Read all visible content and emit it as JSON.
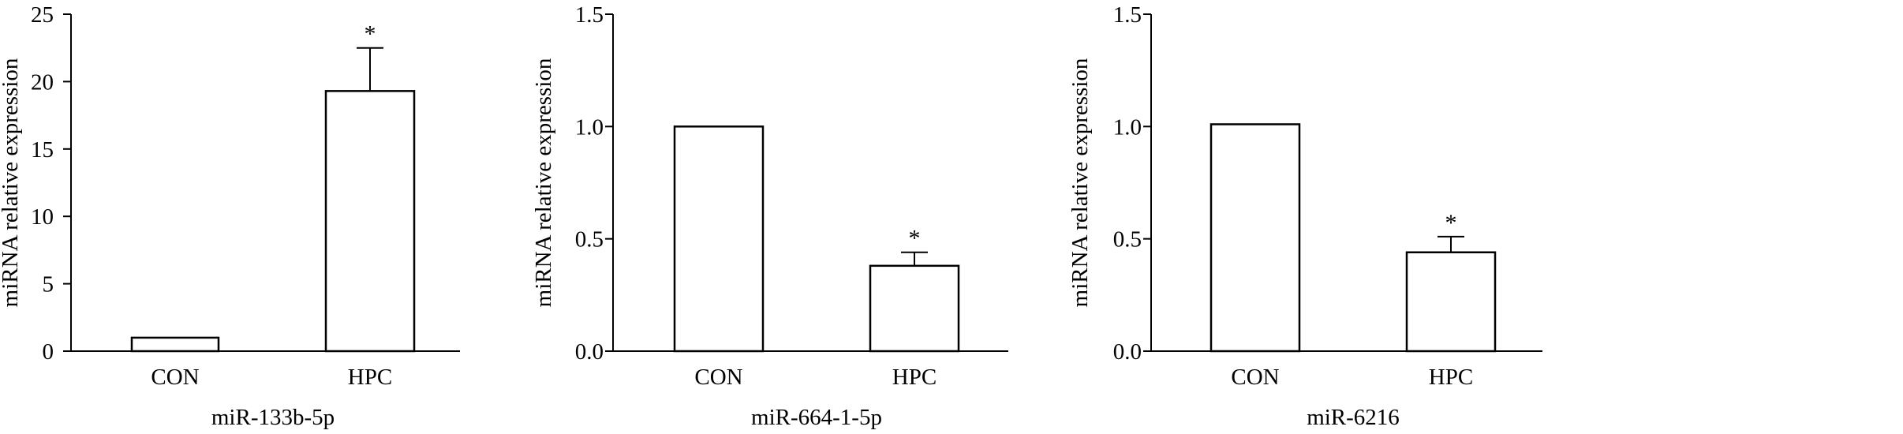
{
  "chart_data": [
    {
      "type": "bar",
      "title": "",
      "xlabel": "miR-133b-5p",
      "ylabel": "miRNA relative expression",
      "categories": [
        "CON",
        "HPC"
      ],
      "values": [
        1.0,
        19.3
      ],
      "errors": [
        0,
        3.2
      ],
      "significance": [
        "",
        "*"
      ],
      "ylim": [
        0,
        25
      ],
      "yticks": [
        0,
        5,
        10,
        15,
        20,
        25
      ],
      "ytick_labels": [
        "0",
        "5",
        "10",
        "15",
        "20",
        "25"
      ]
    },
    {
      "type": "bar",
      "title": "",
      "xlabel": "miR-664-1-5p",
      "ylabel": "miRNA relative expression",
      "categories": [
        "CON",
        "HPC"
      ],
      "values": [
        1.0,
        0.38
      ],
      "errors": [
        0,
        0.06
      ],
      "significance": [
        "",
        "*"
      ],
      "ylim": [
        0,
        1.5
      ],
      "yticks": [
        0,
        0.5,
        1.0,
        1.5
      ],
      "ytick_labels": [
        "0.0",
        "0.5",
        "1.0",
        "1.5"
      ]
    },
    {
      "type": "bar",
      "title": "",
      "xlabel": "miR-6216",
      "ylabel": "miRNA relative expression",
      "categories": [
        "CON",
        "HPC"
      ],
      "values": [
        1.01,
        0.44
      ],
      "errors": [
        0,
        0.07
      ],
      "significance": [
        "",
        "*"
      ],
      "ylim": [
        0,
        1.5
      ],
      "yticks": [
        0,
        0.5,
        1.0,
        1.5
      ],
      "ytick_labels": [
        "0.0",
        "0.5",
        "1.0",
        "1.5"
      ]
    }
  ]
}
